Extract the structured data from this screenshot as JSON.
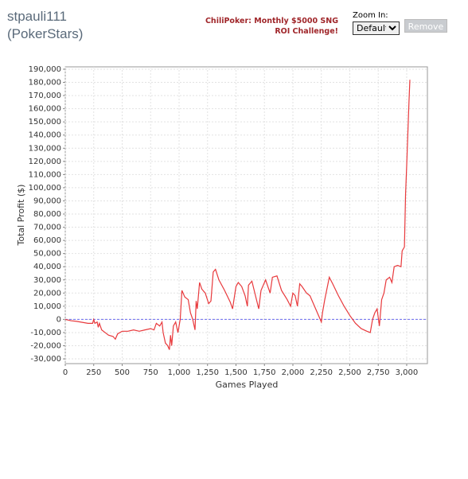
{
  "header": {
    "title": "stpauli111",
    "subtitle": "(PokerStars)",
    "promo": "ChiliPoker: Monthly $5000 SNG ROI Challenge!",
    "zoom_label": "Zoom In:",
    "zoom_option": "Default",
    "button": "Remove"
  },
  "chart_data": {
    "type": "line",
    "xlabel": "Games Played",
    "ylabel": "Total Profit ($)",
    "x": [
      0,
      50,
      100,
      200,
      240,
      250,
      260,
      280,
      290,
      300,
      320,
      350,
      380,
      420,
      440,
      460,
      500,
      550,
      600,
      650,
      700,
      750,
      780,
      800,
      830,
      850,
      860,
      880,
      900,
      915,
      925,
      935,
      950,
      970,
      990,
      1010,
      1025,
      1050,
      1080,
      1100,
      1120,
      1140,
      1150,
      1160,
      1180,
      1200,
      1230,
      1260,
      1280,
      1300,
      1320,
      1350,
      1400,
      1450,
      1470,
      1500,
      1520,
      1550,
      1580,
      1600,
      1610,
      1640,
      1660,
      1700,
      1720,
      1760,
      1780,
      1800,
      1820,
      1860,
      1900,
      1950,
      1980,
      2000,
      2020,
      2040,
      2060,
      2080,
      2120,
      2150,
      2200,
      2240,
      2250,
      2260,
      2280,
      2320,
      2350,
      2400,
      2450,
      2500,
      2550,
      2600,
      2650,
      2680,
      2700,
      2720,
      2740,
      2760,
      2780,
      2800,
      2820,
      2850,
      2870,
      2890,
      2920,
      2950,
      2960,
      2980,
      2990,
      3000,
      3020,
      3028
    ],
    "values": [
      0,
      -1000,
      -1500,
      -3000,
      -3000,
      0,
      -3000,
      -2000,
      -6000,
      -3000,
      -8000,
      -10000,
      -12000,
      -13000,
      -15000,
      -11000,
      -9000,
      -9000,
      -8000,
      -9000,
      -8000,
      -7000,
      -8000,
      -3000,
      -5000,
      -2000,
      -10000,
      -18000,
      -20000,
      -23000,
      -12000,
      -20000,
      -5000,
      -2000,
      -10000,
      0,
      22000,
      17000,
      15000,
      5000,
      0,
      -8000,
      14000,
      8000,
      28000,
      23000,
      20000,
      12000,
      14000,
      36000,
      38000,
      30000,
      22000,
      13000,
      8000,
      25000,
      28000,
      25000,
      18000,
      10000,
      26000,
      29000,
      22000,
      8000,
      22000,
      30000,
      25000,
      20000,
      32000,
      33000,
      22000,
      15000,
      10000,
      20000,
      18000,
      10000,
      27000,
      25000,
      20000,
      18000,
      8000,
      0,
      -2000,
      5000,
      15000,
      32000,
      27000,
      18000,
      10000,
      3000,
      -3000,
      -7000,
      -9000,
      -10000,
      0,
      5000,
      8000,
      -5000,
      15000,
      20000,
      30000,
      32000,
      28000,
      40000,
      41000,
      40000,
      52000,
      55000,
      95000,
      117000,
      165000,
      182000
    ],
    "color": "#e8393c",
    "zero_line": {
      "value": 0,
      "color": "#6a6aee"
    },
    "grid": true,
    "xlim": [
      0,
      3182
    ],
    "ylim": [
      -33600,
      191800
    ],
    "xticks": [
      0,
      250,
      500,
      750,
      {
        "value": 1000,
        "label": "1,000"
      },
      {
        "value": 1250,
        "label": "1,250"
      },
      {
        "value": 1500,
        "label": "1,500"
      },
      {
        "value": 1750,
        "label": "1,750"
      },
      {
        "value": 2000,
        "label": "2,000"
      },
      {
        "value": 2250,
        "label": "2,250"
      },
      {
        "value": 2500,
        "label": "2,500"
      },
      {
        "value": 2750,
        "label": "2,750"
      },
      {
        "value": 3000,
        "label": "3,000"
      }
    ],
    "yticks": [
      {
        "value": -30000,
        "label": "-30,000"
      },
      {
        "value": -20000,
        "label": "-20,000"
      },
      {
        "value": -10000,
        "label": "-10,000"
      },
      0,
      {
        "value": 10000,
        "label": "10,000"
      },
      {
        "value": 20000,
        "label": "20,000"
      },
      {
        "value": 30000,
        "label": "30,000"
      },
      {
        "value": 40000,
        "label": "40,000"
      },
      {
        "value": 50000,
        "label": "50,000"
      },
      {
        "value": 60000,
        "label": "60,000"
      },
      {
        "value": 70000,
        "label": "70,000"
      },
      {
        "value": 80000,
        "label": "80,000"
      },
      {
        "value": 90000,
        "label": "90,000"
      },
      {
        "value": 100000,
        "label": "100,000"
      },
      {
        "value": 110000,
        "label": "110,000"
      },
      {
        "value": 120000,
        "label": "120,000"
      },
      {
        "value": 130000,
        "label": "130,000"
      },
      {
        "value": 140000,
        "label": "140,000"
      },
      {
        "value": 150000,
        "label": "150,000"
      },
      {
        "value": 160000,
        "label": "160,000"
      },
      {
        "value": 170000,
        "label": "170,000"
      },
      {
        "value": 180000,
        "label": "180,000"
      },
      {
        "value": 190000,
        "label": "190,000"
      }
    ]
  }
}
